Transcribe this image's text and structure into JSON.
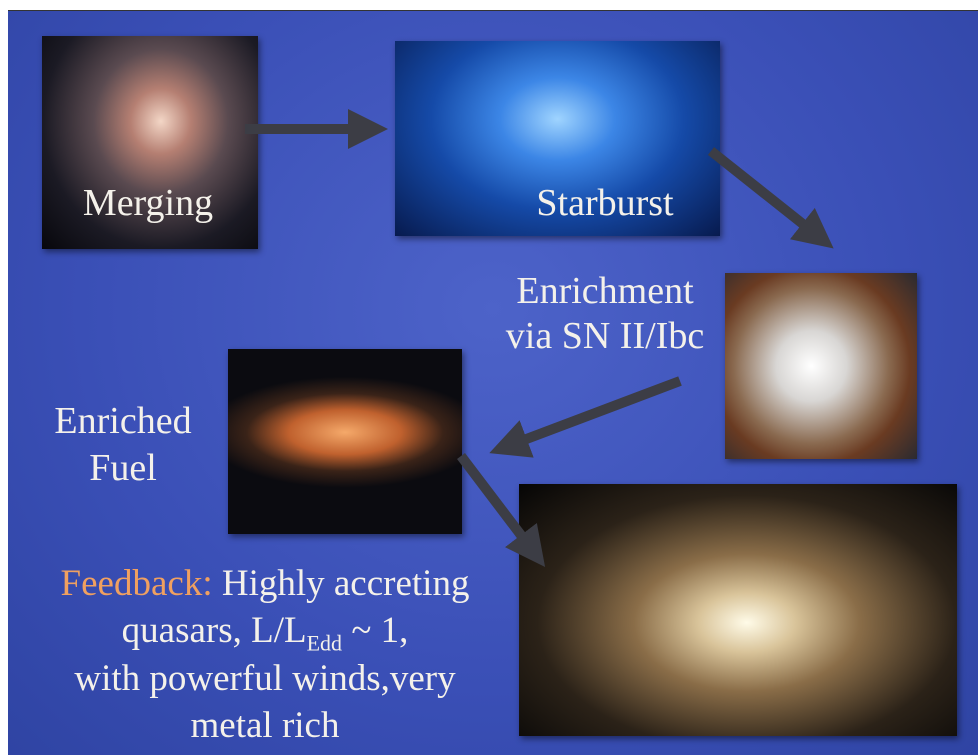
{
  "slide": {
    "images": {
      "merging": "Merging",
      "starburst": "Starburst"
    },
    "enrichment": [
      "Enrichment",
      "via SN II/Ibc"
    ],
    "fuel": [
      "Enriched",
      "Fuel"
    ],
    "feedback": {
      "label": "Feedback:",
      "line1": "Highly accreting",
      "line2_pre": "quasars, L/L",
      "line2_sub": "Edd",
      "line2_post": " ~ 1,",
      "line3": "with powerful winds,very",
      "line4": "metal rich"
    }
  }
}
